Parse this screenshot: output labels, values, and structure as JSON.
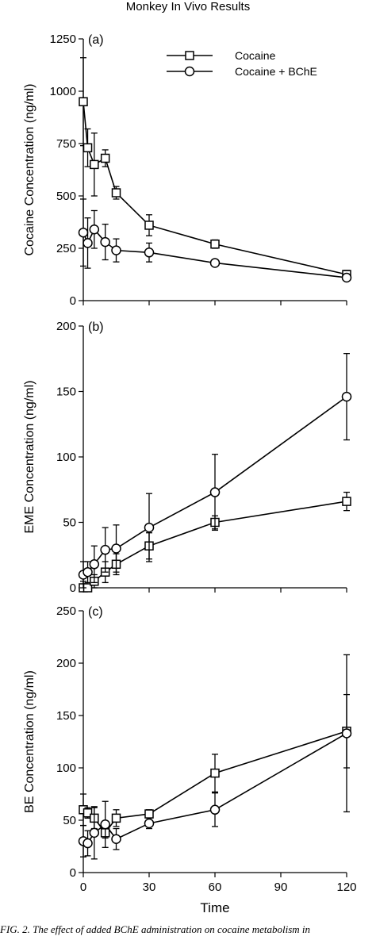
{
  "figure": {
    "title": "Monkey In Vivo Results",
    "caption": "FIG. 2. The effect of added BChE administration on cocaine metabolism in"
  },
  "chart_data": [
    {
      "type": "line",
      "panel_label": "(a)",
      "ylabel": "Cocaine Concentration (ng/ml)",
      "xlabel": "",
      "xlim": [
        0,
        120
      ],
      "ylim": [
        0,
        1250
      ],
      "yticks": [
        0,
        250,
        500,
        750,
        1000,
        1250
      ],
      "xticks": [
        0,
        30,
        60,
        90,
        120
      ],
      "show_xtick_labels": false,
      "legend": {
        "placement": "top-right",
        "entries": [
          "Cocaine",
          "Cocaine + BChE"
        ]
      },
      "series": [
        {
          "name": "Cocaine",
          "marker": "square",
          "x": [
            0,
            2,
            5,
            10,
            15,
            30,
            60,
            120
          ],
          "y": [
            950,
            730,
            650,
            680,
            515,
            360,
            270,
            125
          ],
          "err": [
            210,
            90,
            150,
            40,
            30,
            50,
            20,
            20
          ]
        },
        {
          "name": "Cocaine + BChE",
          "marker": "circle",
          "x": [
            0,
            2,
            5,
            10,
            15,
            30,
            60,
            120
          ],
          "y": [
            325,
            275,
            340,
            280,
            240,
            230,
            180,
            110
          ],
          "err": [
            160,
            120,
            90,
            85,
            55,
            45,
            10,
            10
          ]
        }
      ]
    },
    {
      "type": "line",
      "panel_label": "(b)",
      "ylabel": "EME Concentration (ng/ml)",
      "xlabel": "",
      "xlim": [
        0,
        120
      ],
      "ylim": [
        0,
        200
      ],
      "yticks": [
        0,
        50,
        100,
        150,
        200
      ],
      "xticks": [
        0,
        30,
        60,
        90,
        120
      ],
      "show_xtick_labels": false,
      "series": [
        {
          "name": "Cocaine",
          "marker": "square",
          "x": [
            0,
            2,
            5,
            10,
            15,
            30,
            60,
            120
          ],
          "y": [
            0,
            0,
            5,
            12,
            18,
            32,
            50,
            66
          ],
          "err": [
            5,
            3,
            5,
            8,
            8,
            10,
            5,
            7
          ]
        },
        {
          "name": "Cocaine + BChE",
          "marker": "circle",
          "x": [
            0,
            2,
            5,
            10,
            15,
            30,
            60,
            120
          ],
          "y": [
            10,
            12,
            18,
            29,
            30,
            46,
            73,
            146
          ],
          "err": [
            10,
            8,
            14,
            17,
            18,
            26,
            29,
            33
          ]
        }
      ]
    },
    {
      "type": "line",
      "panel_label": "(c)",
      "ylabel": "BE Concentration (ng/ml)",
      "xlabel": "Time",
      "xlim": [
        0,
        120
      ],
      "ylim": [
        0,
        250
      ],
      "yticks": [
        0,
        50,
        100,
        150,
        200,
        250
      ],
      "xticks": [
        0,
        30,
        60,
        90,
        120
      ],
      "show_xtick_labels": true,
      "series": [
        {
          "name": "Cocaine",
          "marker": "square",
          "x": [
            0,
            2,
            5,
            10,
            15,
            30,
            60,
            120
          ],
          "y": [
            60,
            57,
            52,
            38,
            52,
            56,
            95,
            135
          ],
          "err": [
            15,
            5,
            10,
            5,
            8,
            4,
            18,
            35
          ]
        },
        {
          "name": "Cocaine + BChE",
          "marker": "circle",
          "x": [
            0,
            2,
            5,
            10,
            15,
            30,
            60,
            120
          ],
          "y": [
            30,
            28,
            38,
            46,
            32,
            47,
            60,
            133
          ],
          "err": [
            15,
            12,
            25,
            22,
            10,
            5,
            16,
            75
          ]
        }
      ]
    }
  ]
}
